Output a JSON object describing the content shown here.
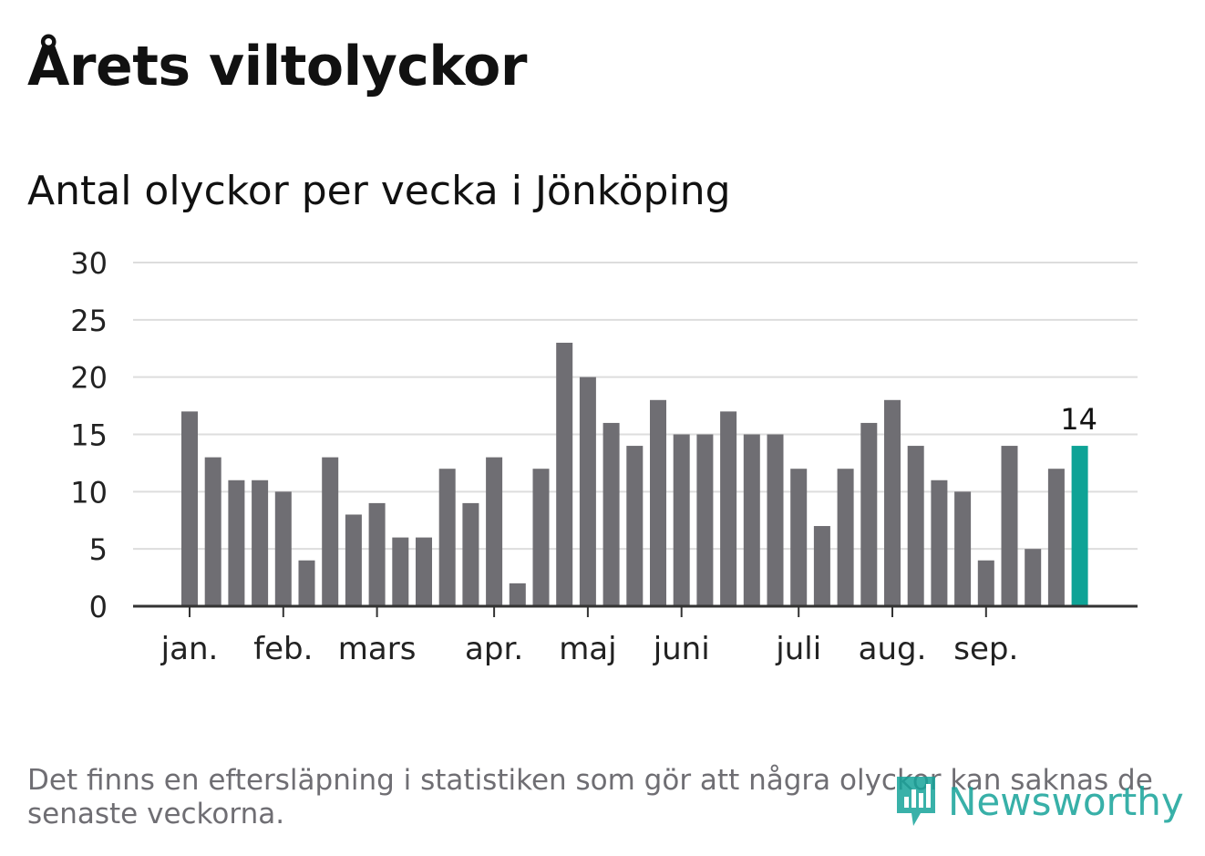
{
  "title": "Årets viltolyckor",
  "subtitle": "Antal olyckor per vecka i Jönköping",
  "footnote": "Det finns en eftersläpning i statistiken som gör att några olyckor kan saknas de senaste veckorna.",
  "logo": {
    "text": "Newsworthy",
    "icon": "newsworthy-logo-icon"
  },
  "colors": {
    "bar": "#6f6e73",
    "highlight": "#0ea396",
    "grid": "#dddddd",
    "axis": "#333333"
  },
  "chart_data": {
    "type": "bar",
    "title": "Antal olyckor per vecka i Jönköping",
    "xlabel": "",
    "ylabel": "",
    "ylim": [
      0,
      30
    ],
    "yticks": [
      "0",
      "5",
      "10",
      "15",
      "20",
      "25",
      "30"
    ],
    "grid": true,
    "weeks": [
      1,
      2,
      3,
      4,
      5,
      6,
      7,
      8,
      9,
      10,
      11,
      12,
      13,
      14,
      15,
      16,
      17,
      18,
      19,
      20,
      21,
      22,
      23,
      24,
      25,
      26,
      27,
      28,
      29,
      30,
      31,
      32,
      33,
      34,
      35,
      36,
      37,
      38,
      39
    ],
    "values": [
      17,
      13,
      11,
      11,
      10,
      4,
      13,
      8,
      9,
      6,
      6,
      12,
      9,
      13,
      2,
      12,
      23,
      20,
      16,
      14,
      18,
      15,
      15,
      17,
      15,
      15,
      12,
      7,
      12,
      16,
      18,
      14,
      11,
      10,
      4,
      14,
      5,
      12,
      14
    ],
    "highlight_index": 38,
    "highlight_label": "14",
    "month_ticks": [
      {
        "label": "jan.",
        "week": 1
      },
      {
        "label": "feb.",
        "week": 5
      },
      {
        "label": "mars",
        "week": 9
      },
      {
        "label": "apr.",
        "week": 14
      },
      {
        "label": "maj",
        "week": 18
      },
      {
        "label": "juni",
        "week": 22
      },
      {
        "label": "juli",
        "week": 27
      },
      {
        "label": "aug.",
        "week": 31
      },
      {
        "label": "sep.",
        "week": 35
      }
    ]
  }
}
